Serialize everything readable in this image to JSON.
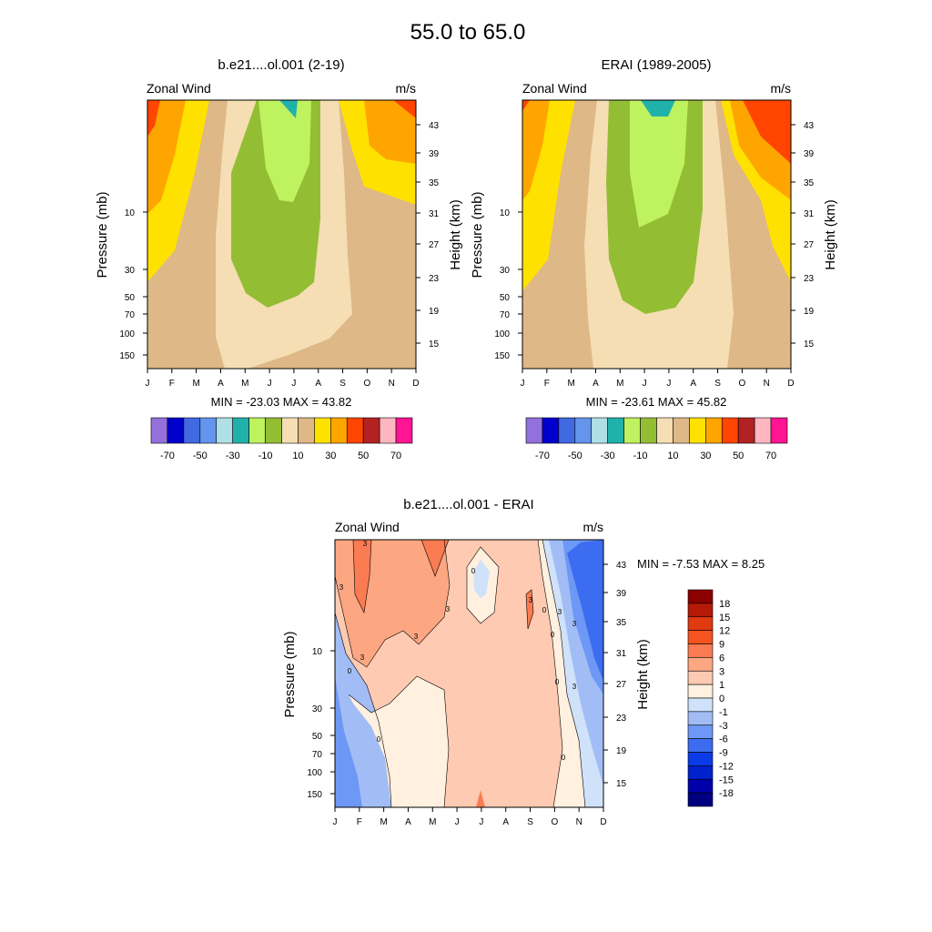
{
  "main_title": "55.0 to  65.0",
  "months": [
    "J",
    "F",
    "M",
    "A",
    "M",
    "J",
    "J",
    "A",
    "S",
    "O",
    "N",
    "D"
  ],
  "pressure_ticks": [
    "10",
    "30",
    "50",
    "70",
    "100",
    "150"
  ],
  "height_ticks": [
    "43",
    "39",
    "35",
    "31",
    "27",
    "23",
    "19",
    "15"
  ],
  "fill_colors": [
    "#9370DB",
    "#0000CD",
    "#4169E1",
    "#6495ED",
    "#B0E0E6",
    "#20B2AA",
    "#BFF25F",
    "#93BE34",
    "#F5DEB3",
    "#DEB887",
    "#FFE100",
    "#FFA500",
    "#FF4500",
    "#B22222",
    "#FFB6C1",
    "#FF1493"
  ],
  "diff_colors": [
    "#000080",
    "#0000AA",
    "#0022CC",
    "#0A3BE6",
    "#3C6CF0",
    "#6E98F5",
    "#A2BDF5",
    "#D0E2FA",
    "#FFF0DF",
    "#FECAB2",
    "#FCA682",
    "#FB7B52",
    "#F5531F",
    "#E03A10",
    "#B51A08",
    "#8B0000"
  ],
  "panels": [
    {
      "title": "b.e21....ol.001 (2-19)",
      "left_label": "Zonal Wind",
      "right_label": "m/s",
      "y_left_label": "Pressure (mb)",
      "y_right_label": "Height (km)",
      "stats": "MIN = -23.03  MAX =  43.82",
      "colorbar_labels": [
        "-70",
        "-50",
        "-30",
        "-10",
        "10",
        "30",
        "50",
        "70"
      ]
    },
    {
      "title": "ERAI (1989-2005)",
      "left_label": "Zonal Wind",
      "right_label": "m/s",
      "y_left_label": "Pressure (mb)",
      "y_right_label": "Height (km)",
      "stats": "MIN = -23.61  MAX =  45.82",
      "colorbar_labels": [
        "-70",
        "-50",
        "-30",
        "-10",
        "10",
        "30",
        "50",
        "70"
      ]
    },
    {
      "title": "b.e21....ol.001 - ERAI",
      "left_label": "Zonal Wind",
      "right_label": "m/s",
      "y_left_label": "Pressure (mb)",
      "y_right_label": "Height (km)",
      "stats": "MIN =  -7.53  MAX =   8.25",
      "colorbar_labels": [
        "18",
        "15",
        "12",
        "9",
        "6",
        "3",
        "1",
        "0",
        "-1",
        "-3",
        "-6",
        "-9",
        "-12",
        "-15",
        "-18"
      ]
    }
  ],
  "chart_data": [
    {
      "type": "contour",
      "title": "b.e21....ol.001 (2-19)",
      "x_categories": [
        "J",
        "F",
        "M",
        "A",
        "M",
        "J",
        "J",
        "A",
        "S",
        "O",
        "N",
        "D"
      ],
      "ylabel": "Pressure (mb)",
      "y2label": "Height (km)",
      "levels": [
        -70,
        -60,
        -50,
        -40,
        -30,
        -20,
        -10,
        0,
        10,
        20,
        30,
        40,
        50,
        60,
        70
      ],
      "min": -23.03,
      "max": 43.82
    },
    {
      "type": "contour",
      "title": "ERAI (1989-2005)",
      "x_categories": [
        "J",
        "F",
        "M",
        "A",
        "M",
        "J",
        "J",
        "A",
        "S",
        "O",
        "N",
        "D"
      ],
      "ylabel": "Pressure (mb)",
      "y2label": "Height (km)",
      "levels": [
        -70,
        -60,
        -50,
        -40,
        -30,
        -20,
        -10,
        0,
        10,
        20,
        30,
        40,
        50,
        60,
        70
      ],
      "min": -23.61,
      "max": 45.82
    },
    {
      "type": "contour",
      "title": "b.e21....ol.001 - ERAI",
      "x_categories": [
        "J",
        "F",
        "M",
        "A",
        "M",
        "J",
        "J",
        "A",
        "S",
        "O",
        "N",
        "D"
      ],
      "ylabel": "Pressure (mb)",
      "y2label": "Height (km)",
      "levels": [
        -18,
        -15,
        -12,
        -9,
        -6,
        -3,
        -1,
        0,
        1,
        3,
        6,
        9,
        12,
        15,
        18
      ],
      "contour_labels": [
        "3",
        "3",
        "3",
        "3",
        "3",
        "3",
        "0",
        "0",
        "0",
        "0",
        "0",
        "0",
        "3",
        "3",
        "3",
        "0"
      ],
      "min": -7.53,
      "max": 8.25
    }
  ]
}
